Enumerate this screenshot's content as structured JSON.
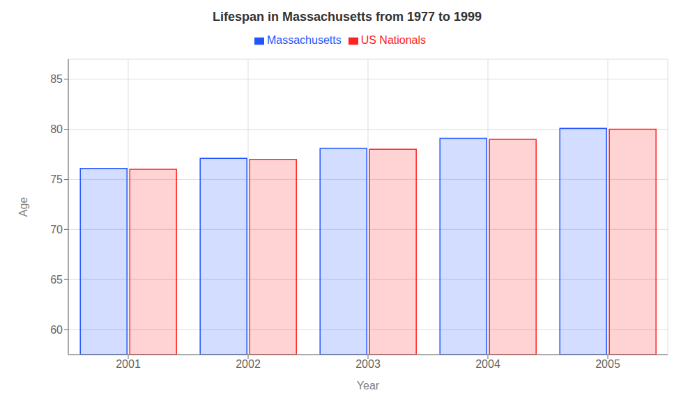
{
  "chart_data": {
    "type": "bar",
    "title": "Lifespan in Massachusetts from 1977 to 1999",
    "xlabel": "Year",
    "ylabel": "Age",
    "categories": [
      "2001",
      "2002",
      "2003",
      "2004",
      "2005"
    ],
    "series": [
      {
        "name": "Massachusetts",
        "color": "#2255ff",
        "values": [
          76.1,
          77.1,
          78.1,
          79.1,
          80.1
        ]
      },
      {
        "name": "US Nationals",
        "color": "#ff2222",
        "values": [
          76.0,
          77.0,
          78.0,
          79.0,
          80.0
        ]
      }
    ],
    "ylim": [
      57.5,
      87
    ],
    "yticks": [
      60,
      65,
      70,
      75,
      80,
      85
    ],
    "grid": true,
    "legend": "top"
  }
}
